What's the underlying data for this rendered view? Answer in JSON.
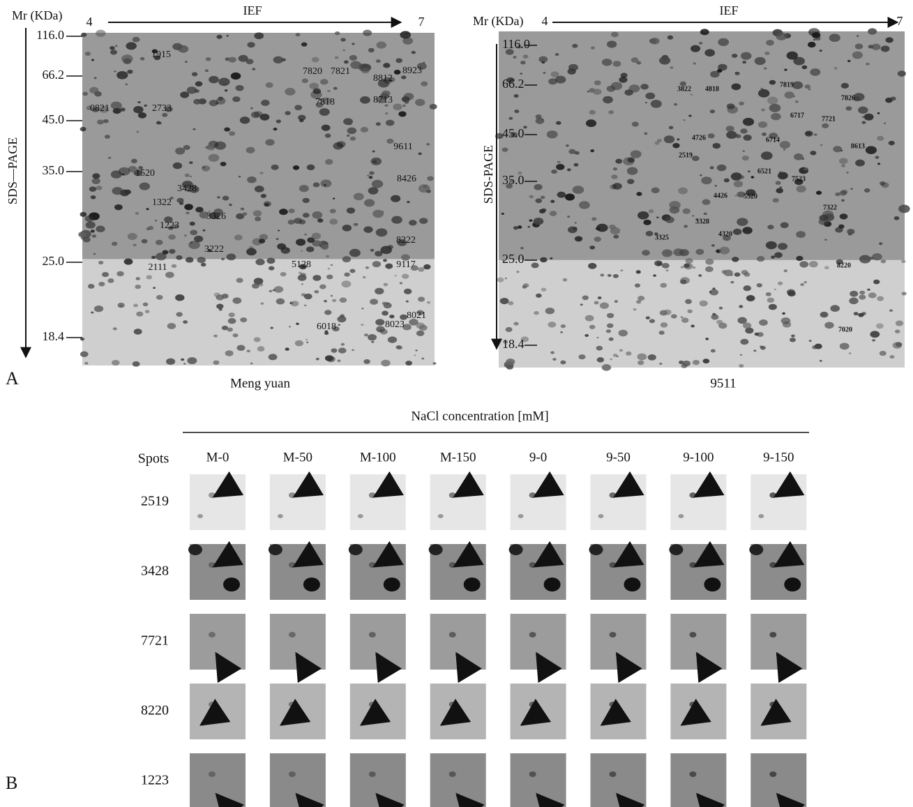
{
  "panel_a": {
    "label": "A",
    "gels": [
      {
        "caption": "Meng yuan",
        "mr_label": "Mr (KDa)",
        "x_axis": "IEF",
        "ph_start": "4",
        "ph_end": "7",
        "y_axis": "SDS—PAGE",
        "mr_ticks": [
          "116.0",
          "66.2",
          "45.0",
          "35.0",
          "25.0",
          "18.4"
        ],
        "spots": [
          "1915",
          "7820",
          "7821",
          "8812",
          "8923",
          "0821",
          "2733",
          "7818",
          "8713",
          "9611",
          "1520",
          "8426",
          "3428",
          "1322",
          "3326",
          "1223",
          "8222",
          "3222",
          "2111",
          "5128",
          "9117",
          "6018",
          "8021",
          "8023"
        ]
      },
      {
        "caption": "9511",
        "mr_label": "Mr (KDa)",
        "x_axis": "IEF",
        "ph_start": "4",
        "ph_end": "7",
        "y_axis": "SDS-PAGE",
        "mr_ticks": [
          "116.0",
          "66.2",
          "45.0",
          "35.0",
          "25.0",
          "18.4"
        ],
        "spots": [
          "3822",
          "4818",
          "7819",
          "7826",
          "6717",
          "7721",
          "4726",
          "6714",
          "8613",
          "2519",
          "6521",
          "7523",
          "4426",
          "5520",
          "7322",
          "3328",
          "4320",
          "3325",
          "8220",
          "7020"
        ]
      }
    ]
  },
  "panel_b": {
    "label": "B",
    "header": "NaCl concentration [mM]",
    "row_header": "Spots",
    "columns": [
      "M-0",
      "M-50",
      "M-100",
      "M-150",
      "9-0",
      "9-50",
      "9-100",
      "9-150"
    ],
    "rows": [
      "2519",
      "3428",
      "7721",
      "8220",
      "1223"
    ]
  }
}
